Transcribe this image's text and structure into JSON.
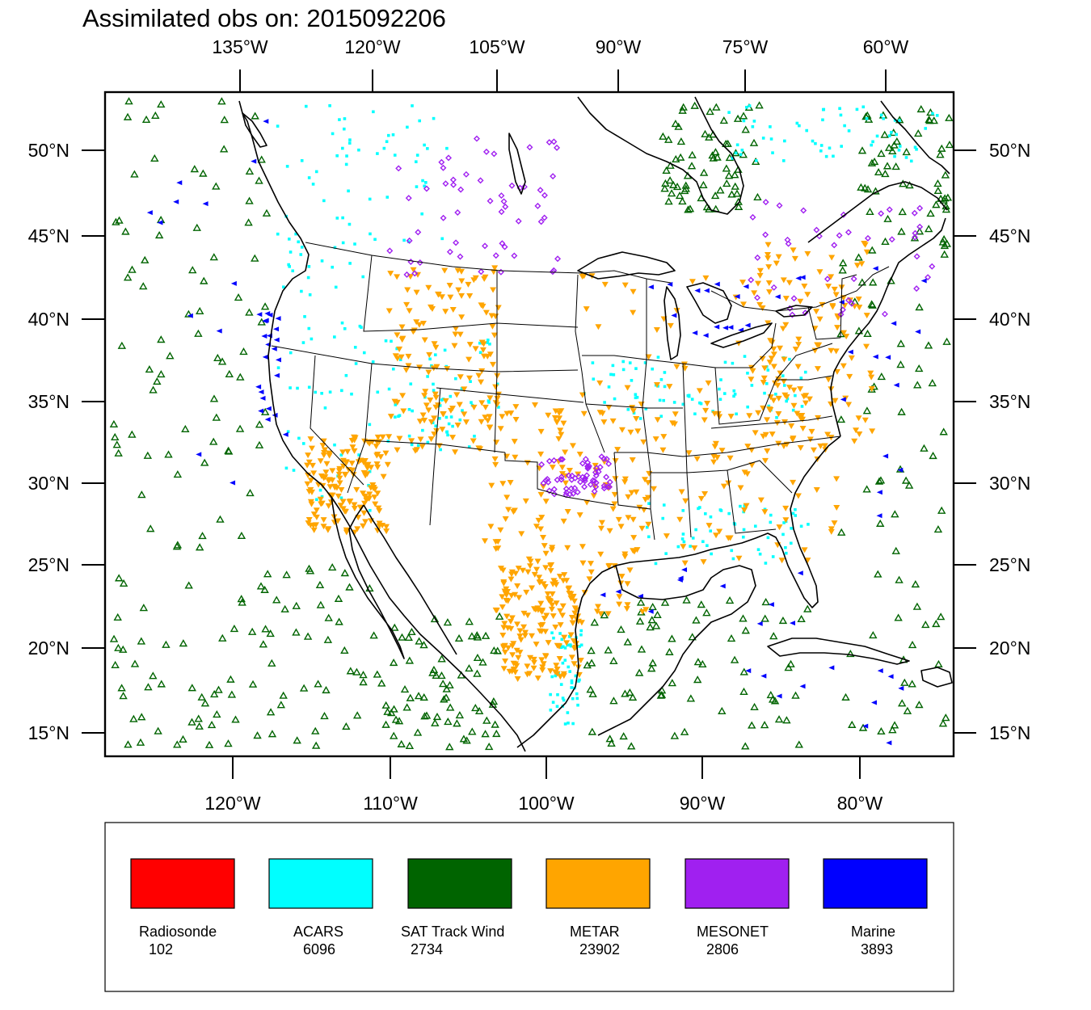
{
  "title": "Assimilated obs on: 2015092206",
  "map": {
    "top_lon_labels": [
      "135°W",
      "120°W",
      "105°W",
      "90°W",
      "75°W",
      "60°W"
    ],
    "bottom_lon_labels": [
      "120°W",
      "110°W",
      "100°W",
      "90°W",
      "80°W"
    ],
    "lat_labels": [
      "50°N",
      "45°N",
      "40°N",
      "35°N",
      "30°N",
      "25°N",
      "20°N",
      "15°N"
    ]
  },
  "legend": {
    "items": [
      {
        "label": "Radiosonde",
        "count": "102",
        "color": "#ff0000"
      },
      {
        "label": "ACARS",
        "count": "6096",
        "color": "#00ffff"
      },
      {
        "label": "SAT Track Wind",
        "count": "2734",
        "color": "#006400"
      },
      {
        "label": "METAR",
        "count": "23902",
        "color": "#ffa500"
      },
      {
        "label": "MESONET",
        "count": "2806",
        "color": "#a020f0"
      },
      {
        "label": "Marine",
        "count": "3893",
        "color": "#0000ff"
      }
    ]
  }
}
